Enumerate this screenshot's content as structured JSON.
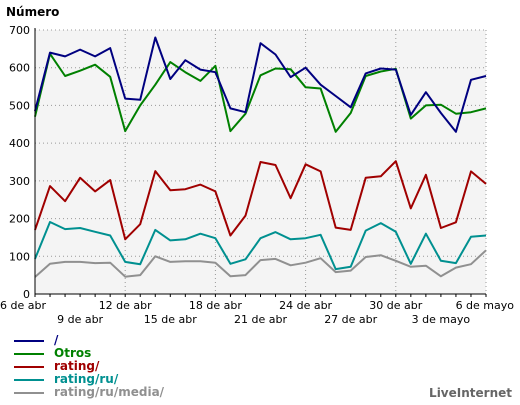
{
  "chart_data": {
    "type": "line",
    "title": "Número",
    "ylim": [
      0,
      700
    ],
    "yticks": [
      0,
      100,
      200,
      300,
      400,
      500,
      600,
      700
    ],
    "grid": true,
    "x_count": 31,
    "xticks_upper": [
      {
        "index": 0,
        "label": "6 de abr"
      },
      {
        "index": 6,
        "label": "12 de abr"
      },
      {
        "index": 12,
        "label": "18 de abr"
      },
      {
        "index": 18,
        "label": "24 de abr"
      },
      {
        "index": 24,
        "label": "30 de abr"
      },
      {
        "index": 30,
        "label": "6 de mayo"
      }
    ],
    "xticks_lower": [
      {
        "index": 3,
        "label": "9 de abr"
      },
      {
        "index": 9,
        "label": "15 de abr"
      },
      {
        "index": 15,
        "label": "21 de abr"
      },
      {
        "index": 21,
        "label": "27 de abr"
      },
      {
        "index": 27,
        "label": "3 de mayo"
      }
    ],
    "series": [
      {
        "name": "/",
        "color": "#000080",
        "values": [
          485,
          640,
          630,
          648,
          630,
          652,
          518,
          515,
          680,
          570,
          620,
          595,
          588,
          492,
          482,
          665,
          635,
          575,
          600,
          555,
          525,
          495,
          585,
          598,
          595,
          475,
          535,
          480,
          430,
          568,
          578
        ]
      },
      {
        "name": "Otros",
        "color": "#008000",
        "values": [
          470,
          637,
          578,
          592,
          608,
          576,
          432,
          500,
          555,
          615,
          588,
          565,
          605,
          432,
          478,
          580,
          598,
          596,
          548,
          545,
          430,
          480,
          578,
          590,
          597,
          465,
          500,
          502,
          478,
          482,
          492
        ]
      },
      {
        "name": "rating/",
        "color": "#a00000",
        "values": [
          170,
          286,
          246,
          308,
          272,
          302,
          145,
          185,
          326,
          275,
          278,
          290,
          272,
          155,
          208,
          350,
          342,
          254,
          344,
          325,
          176,
          170,
          308,
          312,
          352,
          227,
          316,
          175,
          190,
          325,
          292
        ]
      },
      {
        "name": "rating/ru/",
        "color": "#009090",
        "values": [
          93,
          191,
          172,
          175,
          165,
          155,
          85,
          79,
          170,
          142,
          145,
          160,
          148,
          80,
          92,
          148,
          164,
          145,
          148,
          157,
          66,
          72,
          168,
          188,
          165,
          80,
          160,
          88,
          82,
          152,
          155
        ]
      },
      {
        "name": "rating/ru/media/",
        "color": "#909090",
        "values": [
          45,
          80,
          85,
          85,
          82,
          83,
          46,
          50,
          100,
          85,
          87,
          87,
          83,
          47,
          50,
          90,
          93,
          76,
          83,
          95,
          58,
          62,
          98,
          103,
          88,
          72,
          75,
          47,
          70,
          79,
          116
        ]
      }
    ]
  },
  "brand": "LiveInternet"
}
